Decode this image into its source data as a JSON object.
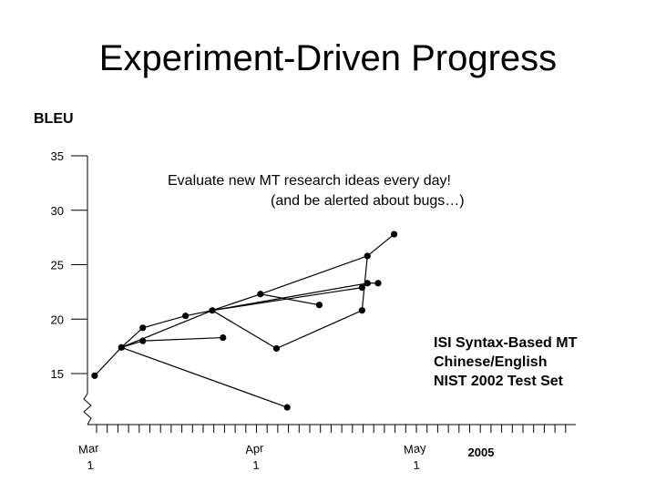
{
  "title": "Experiment-Driven Progress",
  "chart_data": {
    "type": "line",
    "ylabel": "BLEU",
    "xlabel": "",
    "yticks": [
      15,
      20,
      25,
      30,
      35
    ],
    "ylim": [
      11,
      36
    ],
    "x_ticks": [
      {
        "label": [
          "Mar",
          "1"
        ],
        "day": 0
      },
      {
        "label": [
          "Apr",
          "1"
        ],
        "day": 31
      },
      {
        "label": [
          "May",
          "1"
        ],
        "day": 61
      }
    ],
    "year_label": "2005",
    "annotation": [
      "Evaluate new MT research ideas every day!",
      "(and be alerted about bugs…)"
    ],
    "legend_text": [
      "ISI Syntax-Based MT",
      "Chinese/English",
      "NIST 2002 Test Set"
    ],
    "points": [
      {
        "day": 1,
        "bleu": 14.8
      },
      {
        "day": 6,
        "bleu": 17.4
      },
      {
        "day": 10,
        "bleu": 19.2
      },
      {
        "day": 10,
        "bleu": 18.0
      },
      {
        "day": 18,
        "bleu": 20.3
      },
      {
        "day": 23,
        "bleu": 20.8
      },
      {
        "day": 25,
        "bleu": 18.3
      },
      {
        "day": 32,
        "bleu": 22.3
      },
      {
        "day": 35,
        "bleu": 17.3
      },
      {
        "day": 37,
        "bleu": 11.9
      },
      {
        "day": 43,
        "bleu": 21.3
      },
      {
        "day": 51,
        "bleu": 20.8
      },
      {
        "day": 51,
        "bleu": 22.9
      },
      {
        "day": 52,
        "bleu": 25.8
      },
      {
        "day": 52,
        "bleu": 23.3
      },
      {
        "day": 54,
        "bleu": 23.3
      },
      {
        "day": 57,
        "bleu": 27.8
      }
    ],
    "segments": [
      [
        0,
        1
      ],
      [
        1,
        2
      ],
      [
        2,
        4
      ],
      [
        4,
        5
      ],
      [
        1,
        3
      ],
      [
        3,
        6
      ],
      [
        1,
        9
      ],
      [
        1,
        5
      ],
      [
        5,
        7
      ],
      [
        7,
        10
      ],
      [
        5,
        8
      ],
      [
        8,
        11
      ],
      [
        11,
        13
      ],
      [
        13,
        16
      ],
      [
        5,
        12
      ],
      [
        5,
        14
      ],
      [
        14,
        15
      ],
      [
        7,
        13
      ]
    ]
  }
}
